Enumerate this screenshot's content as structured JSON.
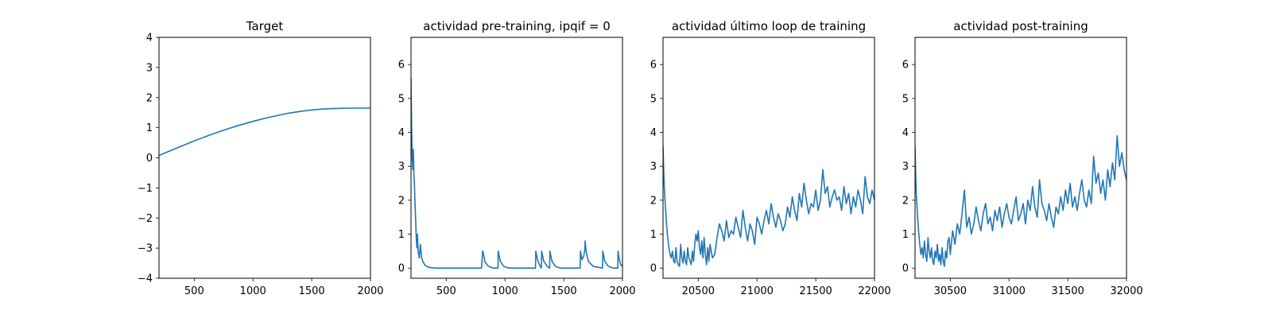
{
  "figure": {
    "background": "#ffffff",
    "line_color": "#1f77b4"
  },
  "chart_data": [
    {
      "type": "line",
      "title": "Target",
      "xlabel": "",
      "ylabel": "",
      "xlim": [
        200,
        2000
      ],
      "ylim": [
        -4,
        4
      ],
      "xticks": [
        500,
        1000,
        1500,
        2000
      ],
      "yticks": [
        -4,
        -3,
        -2,
        -1,
        0,
        1,
        2,
        3,
        4
      ],
      "ytick_labels": [
        "−4",
        "−3",
        "−2",
        "−1",
        "0",
        "1",
        "2",
        "3",
        "4"
      ],
      "grid": false,
      "series": [
        {
          "color": "#1f77b4",
          "x": [
            200,
            300,
            400,
            500,
            600,
            700,
            800,
            900,
            1000,
            1100,
            1200,
            1300,
            1400,
            1500,
            1600,
            1700,
            1800,
            1900,
            2000
          ],
          "y": [
            0.08,
            0.24,
            0.4,
            0.56,
            0.71,
            0.85,
            0.98,
            1.1,
            1.21,
            1.31,
            1.4,
            1.48,
            1.54,
            1.59,
            1.62,
            1.64,
            1.65,
            1.65,
            1.65
          ]
        }
      ]
    },
    {
      "type": "line",
      "title": "actividad pre-training, ipqif = 0",
      "xlabel": "",
      "ylabel": "",
      "xlim": [
        200,
        2000
      ],
      "ylim": [
        -0.3,
        6.8
      ],
      "xticks": [
        500,
        1000,
        1500,
        2000
      ],
      "yticks": [
        0,
        1,
        2,
        3,
        4,
        5,
        6
      ],
      "ytick_labels": [
        "0",
        "1",
        "2",
        "3",
        "4",
        "5",
        "6"
      ],
      "grid": false,
      "series": [
        {
          "color": "#1f77b4",
          "x": [
            200,
            205,
            210,
            215,
            220,
            225,
            230,
            235,
            240,
            245,
            250,
            255,
            260,
            270,
            280,
            290,
            300,
            320,
            350,
            400,
            450,
            500,
            600,
            700,
            800,
            810,
            812,
            830,
            860,
            900,
            940,
            942,
            960,
            990,
            1030,
            1260,
            1262,
            1280,
            1300,
            1310,
            1312,
            1330,
            1360,
            1380,
            1382,
            1400,
            1430,
            1470,
            1640,
            1642,
            1655,
            1670,
            1680,
            1682,
            1690,
            1710,
            1750,
            1830,
            1832,
            1850,
            1880,
            1920,
            1960,
            1962,
            1970,
            1985,
            2000
          ],
          "y": [
            5.6,
            4.3,
            3.2,
            2.9,
            3.5,
            2.7,
            2.4,
            1.8,
            1.4,
            0.9,
            0.6,
            1.0,
            0.5,
            0.3,
            0.7,
            0.3,
            0.2,
            0.08,
            0.02,
            0.0,
            0.0,
            0.0,
            0.0,
            0.0,
            0.0,
            0.5,
            0.5,
            0.18,
            0.05,
            0.0,
            0.0,
            0.5,
            0.2,
            0.05,
            0.0,
            0.0,
            0.5,
            0.2,
            0.05,
            0.0,
            0.5,
            0.2,
            0.05,
            0.0,
            0.5,
            0.2,
            0.05,
            0.0,
            0.0,
            0.5,
            0.25,
            0.35,
            0.55,
            0.8,
            0.5,
            0.2,
            0.05,
            0.0,
            0.5,
            0.2,
            0.05,
            0.0,
            0.0,
            0.5,
            0.3,
            0.1,
            0.05
          ]
        }
      ]
    },
    {
      "type": "line",
      "title": "actividad último loop de training",
      "xlabel": "",
      "ylabel": "",
      "xlim": [
        20200,
        22000
      ],
      "ylim": [
        -0.3,
        6.8
      ],
      "xticks": [
        20500,
        21000,
        21500,
        22000
      ],
      "yticks": [
        0,
        1,
        2,
        3,
        4,
        5,
        6
      ],
      "ytick_labels": [
        "0",
        "1",
        "2",
        "3",
        "4",
        "5",
        "6"
      ],
      "grid": false,
      "series": [
        {
          "color": "#1f77b4",
          "x": [
            20200,
            20205,
            20210,
            20220,
            20230,
            20240,
            20250,
            20260,
            20270,
            20280,
            20290,
            20300,
            20310,
            20320,
            20330,
            20340,
            20350,
            20360,
            20370,
            20380,
            20390,
            20400,
            20410,
            20420,
            20430,
            20440,
            20450,
            20460,
            20470,
            20480,
            20490,
            20500,
            20510,
            20520,
            20530,
            20540,
            20550,
            20560,
            20570,
            20580,
            20590,
            20600,
            20620,
            20640,
            20660,
            20680,
            20700,
            20720,
            20740,
            20760,
            20780,
            20800,
            20820,
            20840,
            20860,
            20880,
            20900,
            20920,
            20940,
            20960,
            20980,
            21000,
            21020,
            21040,
            21060,
            21080,
            21100,
            21120,
            21140,
            21160,
            21180,
            21200,
            21220,
            21240,
            21260,
            21280,
            21300,
            21320,
            21340,
            21360,
            21380,
            21400,
            21420,
            21440,
            21460,
            21480,
            21500,
            21520,
            21540,
            21560,
            21580,
            21600,
            21620,
            21640,
            21660,
            21680,
            21700,
            21720,
            21740,
            21760,
            21780,
            21800,
            21820,
            21840,
            21860,
            21880,
            21900,
            21920,
            21940,
            21960,
            21980,
            22000
          ],
          "y": [
            3.6,
            3.0,
            2.4,
            1.8,
            1.3,
            0.9,
            0.6,
            0.4,
            0.3,
            0.5,
            0.2,
            0.15,
            0.6,
            0.2,
            0.1,
            0.05,
            0.7,
            0.3,
            0.15,
            0.5,
            0.2,
            0.1,
            0.6,
            0.3,
            0.2,
            0.1,
            0.5,
            0.2,
            0.7,
            1.0,
            0.8,
            1.1,
            0.6,
            0.4,
            0.8,
            0.3,
            0.9,
            0.4,
            0.1,
            0.6,
            0.2,
            0.7,
            0.3,
            0.4,
            0.9,
            1.3,
            1.1,
            0.8,
            1.4,
            0.9,
            1.1,
            1.0,
            1.5,
            1.2,
            0.9,
            1.7,
            1.2,
            0.8,
            1.3,
            1.1,
            0.7,
            1.5,
            1.3,
            1.0,
            1.4,
            1.7,
            1.3,
            1.9,
            1.5,
            1.2,
            1.6,
            1.4,
            1.1,
            1.3,
            1.8,
            1.5,
            2.1,
            1.7,
            1.4,
            2.2,
            1.8,
            2.5,
            2.0,
            1.6,
            1.9,
            1.8,
            2.3,
            1.7,
            2.0,
            2.9,
            2.2,
            2.4,
            1.8,
            2.1,
            2.3,
            2.0,
            2.1,
            1.7,
            2.4,
            1.9,
            2.2,
            1.6,
            2.1,
            1.8,
            2.3,
            2.0,
            1.6,
            2.7,
            2.1,
            1.9,
            2.3,
            2.0
          ]
        }
      ]
    },
    {
      "type": "line",
      "title": "actividad post-training",
      "xlabel": "",
      "ylabel": "",
      "xlim": [
        30200,
        32000
      ],
      "ylim": [
        -0.3,
        6.8
      ],
      "xticks": [
        30500,
        31000,
        31500,
        32000
      ],
      "yticks": [
        0,
        1,
        2,
        3,
        4,
        5,
        6
      ],
      "ytick_labels": [
        "0",
        "1",
        "2",
        "3",
        "4",
        "5",
        "6"
      ],
      "grid": false,
      "series": [
        {
          "color": "#1f77b4",
          "x": [
            30200,
            30205,
            30210,
            30220,
            30230,
            30240,
            30250,
            30260,
            30270,
            30280,
            30290,
            30300,
            30310,
            30320,
            30330,
            30340,
            30350,
            30360,
            30370,
            30380,
            30390,
            30400,
            30410,
            30420,
            30430,
            30440,
            30450,
            30460,
            30470,
            30480,
            30490,
            30500,
            30520,
            30540,
            30560,
            30580,
            30600,
            30620,
            30640,
            30660,
            30680,
            30700,
            30720,
            30740,
            30760,
            30780,
            30800,
            30820,
            30840,
            30860,
            30880,
            30900,
            30920,
            30940,
            30960,
            30980,
            31000,
            31020,
            31040,
            31060,
            31080,
            31100,
            31120,
            31140,
            31160,
            31180,
            31200,
            31220,
            31240,
            31260,
            31280,
            31300,
            31320,
            31340,
            31360,
            31380,
            31400,
            31420,
            31440,
            31460,
            31480,
            31500,
            31520,
            31540,
            31560,
            31580,
            31600,
            31620,
            31640,
            31660,
            31680,
            31700,
            31720,
            31740,
            31760,
            31780,
            31800,
            31820,
            31840,
            31860,
            31880,
            31900,
            31920,
            31940,
            31960,
            31980,
            32000
          ],
          "y": [
            3.6,
            2.9,
            2.2,
            1.6,
            1.1,
            0.7,
            0.4,
            0.6,
            0.3,
            0.8,
            0.4,
            0.2,
            0.9,
            0.5,
            0.3,
            0.6,
            0.2,
            0.1,
            0.5,
            0.3,
            0.7,
            0.2,
            0.4,
            0.1,
            0.6,
            0.2,
            0.05,
            0.5,
            0.3,
            0.8,
            0.9,
            0.4,
            1.1,
            0.7,
            1.3,
            1.0,
            1.6,
            2.3,
            1.2,
            1.5,
            1.0,
            1.3,
            1.8,
            1.4,
            1.1,
            1.6,
            1.9,
            1.3,
            1.5,
            1.1,
            1.7,
            1.4,
            1.8,
            1.2,
            1.6,
            1.9,
            1.5,
            1.3,
            1.7,
            2.1,
            1.4,
            1.6,
            1.9,
            1.3,
            2.0,
            1.7,
            2.4,
            1.8,
            1.5,
            2.6,
            1.9,
            1.7,
            1.4,
            1.9,
            1.5,
            1.2,
            1.8,
            1.6,
            2.1,
            1.7,
            2.3,
            1.9,
            2.5,
            1.8,
            2.1,
            1.7,
            2.2,
            2.6,
            2.0,
            1.8,
            2.3,
            1.9,
            3.3,
            2.5,
            2.8,
            2.2,
            2.6,
            2.0,
            2.9,
            2.4,
            3.1,
            2.6,
            3.9,
            3.0,
            3.4,
            2.9,
            2.6
          ]
        }
      ]
    }
  ]
}
